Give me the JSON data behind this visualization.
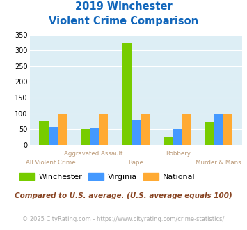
{
  "title_line1": "2019 Winchester",
  "title_line2": "Violent Crime Comparison",
  "categories": [
    "All Violent Crime",
    "Aggravated Assault",
    "Rape",
    "Robbery",
    "Murder & Mans..."
  ],
  "winchester": [
    75,
    50,
    325,
    25,
    72
  ],
  "virginia": [
    57,
    52,
    80,
    50,
    100
  ],
  "national": [
    100,
    100,
    100,
    100,
    100
  ],
  "color_winchester": "#77cc00",
  "color_virginia": "#4499ff",
  "color_national": "#ffaa33",
  "ylim": [
    0,
    350
  ],
  "yticks": [
    0,
    50,
    100,
    150,
    200,
    250,
    300,
    350
  ],
  "bg_color": "#ddeef5",
  "title_color": "#1166bb",
  "xlabel_color": "#bb9977",
  "footnote1": "Compared to U.S. average. (U.S. average equals 100)",
  "footnote2": "© 2025 CityRating.com - https://www.cityrating.com/crime-statistics/",
  "footnote1_color": "#884422",
  "footnote2_color": "#aaaaaa",
  "legend_labels": [
    "Winchester",
    "Virginia",
    "National"
  ],
  "bar_width": 0.22
}
